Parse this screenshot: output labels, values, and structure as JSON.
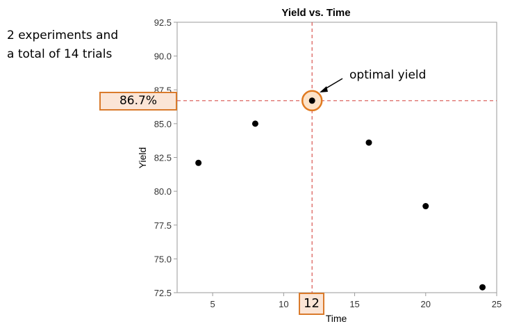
{
  "note": {
    "line1": "2 experiments and",
    "line2": "a total of 14 trials"
  },
  "highlight": {
    "y_label": "86.7%",
    "x_label": "12",
    "annotation": "optimal yield",
    "guide_color": "#d9534f",
    "box_fill": "#fbe5d6",
    "box_border": "#d97a2b"
  },
  "chart_data": {
    "type": "scatter",
    "title": "Yield vs. Time",
    "xlabel": "Time",
    "ylabel": "Yield",
    "xlim": [
      2.5,
      25
    ],
    "ylim": [
      72.5,
      92.5
    ],
    "xticks": [
      5,
      10,
      15,
      20,
      25
    ],
    "yticks": [
      72.5,
      75.0,
      77.5,
      80.0,
      82.5,
      85.0,
      87.5,
      90.0,
      92.5
    ],
    "x": [
      4,
      8,
      12,
      16,
      20,
      24
    ],
    "y": [
      82.1,
      85.0,
      86.7,
      83.6,
      78.9,
      72.9
    ],
    "optimum": {
      "x": 12,
      "y": 86.7
    },
    "grid": false
  }
}
